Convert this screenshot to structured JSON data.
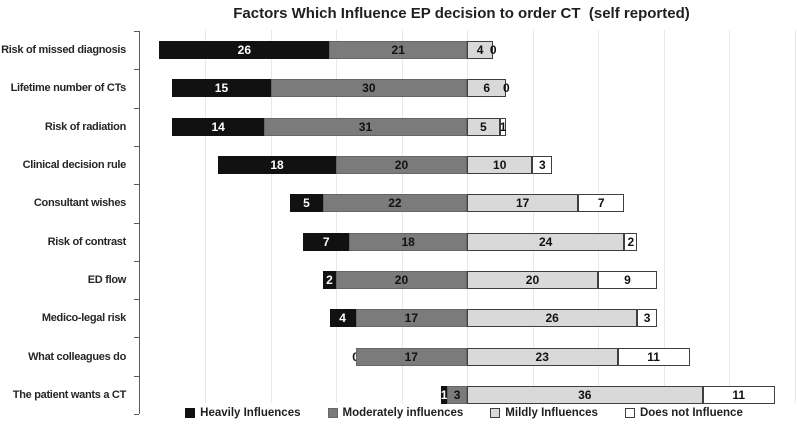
{
  "chart_data": {
    "type": "bar",
    "orientation": "horizontal",
    "variant": "diverging stacked bar",
    "title": "Factors Which Influence EP decision to order CT  (self reported)",
    "categories": [
      "Risk of missed diagnosis",
      "Lifetime number of CTs",
      "Risk of radiation",
      "Clinical decision rule",
      "Consultant wishes",
      "Risk of contrast",
      "ED flow",
      "Medico-legal risk",
      "What colleagues do",
      "The patient wants a CT"
    ],
    "series": [
      {
        "name": "Heavily Influences",
        "color": "#111111",
        "label_color": "#ffffff",
        "values": [
          26,
          15,
          14,
          18,
          5,
          7,
          2,
          4,
          0,
          1
        ]
      },
      {
        "name": "Moderately influences",
        "color": "#7b7b7b",
        "label_color": "#111111",
        "border_color": "#666666",
        "values": [
          21,
          30,
          31,
          20,
          22,
          18,
          20,
          17,
          17,
          3
        ]
      },
      {
        "name": "Mildly Influences",
        "color": "#d9d9d9",
        "label_color": "#111111",
        "border_color": "#3f3f3f",
        "values": [
          4,
          6,
          5,
          10,
          17,
          24,
          20,
          26,
          23,
          36
        ]
      },
      {
        "name": "Does not Influence",
        "color": "#ffffff",
        "label_color": "#111111",
        "border_color": "#3f3f3f",
        "values": [
          0,
          0,
          1,
          3,
          7,
          2,
          9,
          3,
          11,
          11
        ]
      }
    ],
    "alignment": "each bar is aligned so the boundary between 'Moderately influences' and 'Mildly Influences' falls on a common vertical line",
    "x_axis": {
      "min": -50,
      "max": 50,
      "gridline_step": 10,
      "tick_labels_visible": false,
      "grid": true
    },
    "y_axis": {
      "tick_marks": "between categories",
      "labels_position": "left"
    },
    "legend_position": "bottom",
    "value_labels": "value printed on every segment; zero-width segments keep their label beside the bar"
  }
}
